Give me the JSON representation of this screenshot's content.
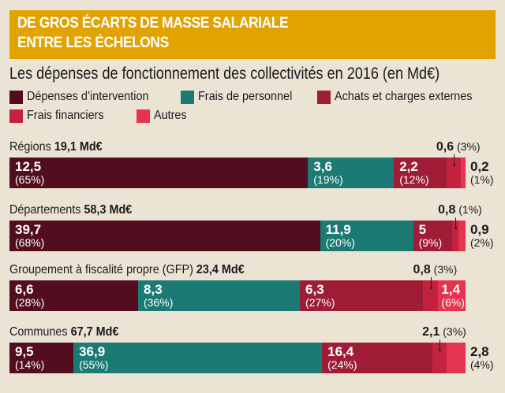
{
  "chart_data": {
    "type": "bar",
    "orientation": "horizontal-stacked-100",
    "title": "DE GROS ÉCARTS DE MASSE SALARIALE ENTRE LES ÉCHELONS",
    "title_lines": [
      "DE GROS ÉCARTS DE MASSE SALARIALE",
      "ENTRE LES ÉCHELONS"
    ],
    "subtitle": "Les dépenses de fonctionnement des collectivités en 2016 (en Md€)",
    "unit": "Md€",
    "legend_position": "top-left",
    "legend": [
      {
        "name": "Dépenses d’intervention",
        "color": "#520e1e"
      },
      {
        "name": "Frais de personnel",
        "color": "#1c7a74"
      },
      {
        "name": "Achats et charges externes",
        "color": "#9e1c36"
      },
      {
        "name": "Frais financiers",
        "color": "#c4213f"
      },
      {
        "name": "Autres",
        "color": "#e4344f"
      }
    ],
    "categories": [
      "Régions",
      "Départements",
      "Groupement à fiscalité propre (GFP)",
      "Communes"
    ],
    "totals": [
      "19,1 Md€",
      "58,3 Md€",
      "23,4 Md€",
      "67,7 Md€"
    ],
    "rows": [
      {
        "name": "Régions",
        "total": "19,1 Md€",
        "values": [
          12.5,
          3.6,
          2.2,
          0.6,
          0.2
        ],
        "labels": [
          "12,5",
          "3,6",
          "2,2",
          "0,6",
          "0,2"
        ],
        "percents": [
          "(65%)",
          "(19%)",
          "(12%)",
          "(3%)",
          "(1%)"
        ]
      },
      {
        "name": "Départements",
        "total": "58,3 Md€",
        "values": [
          39.7,
          11.9,
          5,
          0.8,
          0.9
        ],
        "labels": [
          "39,7",
          "11,9",
          "5",
          "0,8",
          "0,9"
        ],
        "percents": [
          "(68%)",
          "(20%)",
          "(9%)",
          "(1%)",
          "(2%)"
        ]
      },
      {
        "name": "Groupement à fiscalité propre (GFP)",
        "total": "23,4 Md€",
        "values": [
          6.6,
          8.3,
          6.3,
          0.8,
          1.4
        ],
        "labels": [
          "6,6",
          "8,3",
          "6,3",
          "0,8",
          "1,4"
        ],
        "percents": [
          "(28%)",
          "(36%)",
          "(27%)",
          "(3%)",
          "(6%)"
        ]
      },
      {
        "name": "Communes",
        "total": "67,7 Md€",
        "values": [
          9.5,
          36.9,
          16.4,
          2.1,
          2.8
        ],
        "labels": [
          "9,5",
          "36,9",
          "16,4",
          "2,1",
          "2,8"
        ],
        "percents": [
          "(14%)",
          "(55%)",
          "(24%)",
          "(3%)",
          "(4%)"
        ]
      }
    ]
  }
}
